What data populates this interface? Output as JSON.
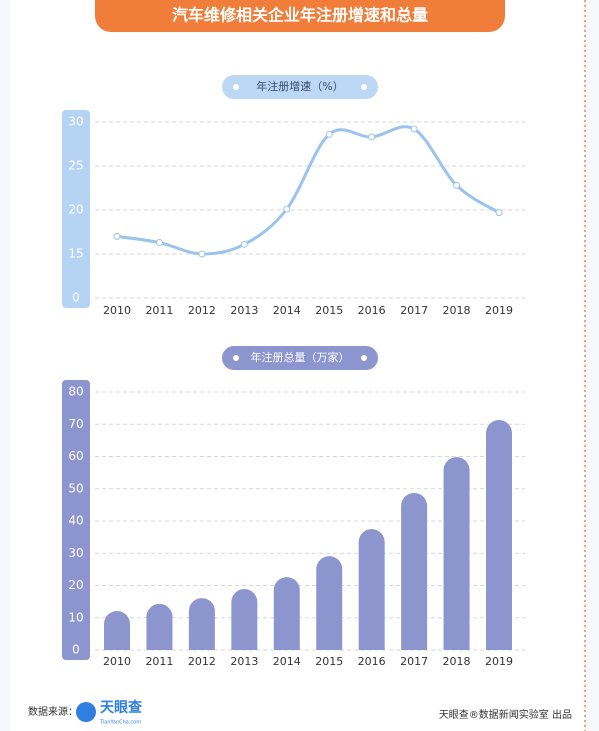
{
  "header": {
    "title": "汽车维修相关企业年注册增速和总量"
  },
  "chart_data": [
    {
      "type": "line",
      "title": "年注册增速（%）",
      "categories": [
        "2010",
        "2011",
        "2012",
        "2013",
        "2014",
        "2015",
        "2016",
        "2017",
        "2018",
        "2019"
      ],
      "values": [
        17.0,
        16.3,
        15.0,
        16.1,
        20.1,
        28.6,
        28.3,
        29.2,
        22.8,
        19.7
      ],
      "color": "#9cc3ec",
      "ylim": [
        0,
        30
      ],
      "yticks": [
        0,
        15,
        20,
        25,
        30
      ],
      "y_scale": "broken",
      "grid": true
    },
    {
      "type": "bar",
      "title": "年注册总量（万家）",
      "categories": [
        "2010",
        "2011",
        "2012",
        "2013",
        "2014",
        "2015",
        "2016",
        "2017",
        "2018",
        "2019"
      ],
      "values": [
        12.1,
        14.3,
        16.1,
        18.9,
        22.6,
        29.1,
        37.5,
        48.7,
        59.8,
        71.3
      ],
      "color": "#8d95cf",
      "ylim": [
        0,
        80
      ],
      "yticks": [
        0,
        10,
        20,
        30,
        40,
        50,
        60,
        70,
        80
      ],
      "grid": true
    }
  ],
  "footer": {
    "source_label": "数据来源：",
    "source_logo": "天眼查",
    "source_logo_sub": "TianYanCha.com",
    "credit": "天眼查®数据新闻实验室 出品"
  }
}
